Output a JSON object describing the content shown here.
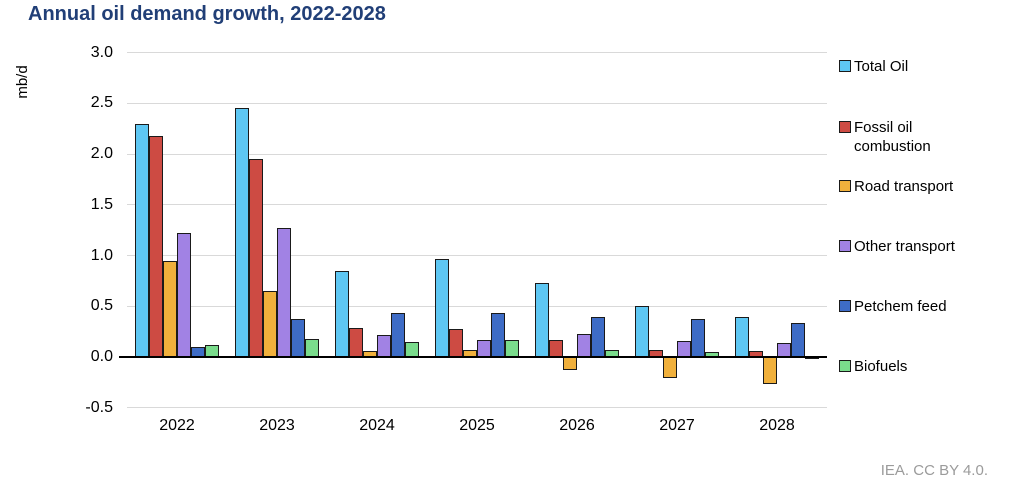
{
  "title": "Annual oil demand growth, 2022-2028",
  "footer": "IEA. CC BY 4.0.",
  "colors": {
    "title_text": "#213F77",
    "grid": "#d9d9d9",
    "axis": "#000000",
    "bar_border": "#1a1a1a",
    "footer_text": "#9B9B9B"
  },
  "chart_data": {
    "type": "bar",
    "title": "Annual oil demand growth, 2022-2028",
    "xlabel": "",
    "ylabel": "mb/d",
    "categories": [
      "2022",
      "2023",
      "2024",
      "2025",
      "2026",
      "2027",
      "2028"
    ],
    "yticks": [
      3.0,
      2.5,
      2.0,
      1.5,
      1.0,
      0.5,
      0.0,
      -0.5
    ],
    "ylim": [
      -0.5,
      3.0
    ],
    "grid": true,
    "legend_position": "right",
    "series": [
      {
        "name": "Total Oil",
        "color": "#5EC7F3",
        "values": [
          2.3,
          2.45,
          0.85,
          0.97,
          0.73,
          0.5,
          0.39
        ]
      },
      {
        "name": "Fossil oil combustion",
        "color": "#CD4B43",
        "values": [
          2.18,
          1.95,
          0.29,
          0.28,
          0.17,
          0.07,
          0.06
        ]
      },
      {
        "name": "Road transport",
        "color": "#F0B03C",
        "values": [
          0.95,
          0.65,
          0.06,
          0.07,
          -0.13,
          -0.21,
          -0.27
        ]
      },
      {
        "name": "Other transport",
        "color": "#A182E4",
        "values": [
          1.22,
          1.27,
          0.22,
          0.17,
          0.23,
          0.16,
          0.14
        ]
      },
      {
        "name": "Petchem feed",
        "color": "#3E6CC6",
        "values": [
          0.1,
          0.37,
          0.43,
          0.43,
          0.39,
          0.37,
          0.34
        ]
      },
      {
        "name": "Biofuels",
        "color": "#7ADC8C",
        "values": [
          0.12,
          0.18,
          0.15,
          0.17,
          0.07,
          0.05,
          -0.02
        ]
      }
    ]
  }
}
